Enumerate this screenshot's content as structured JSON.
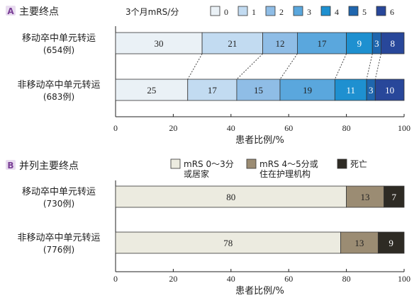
{
  "chart_data": [
    {
      "type": "bar",
      "stacked": true,
      "orientation": "horizontal",
      "panel_letter": "A",
      "title": "主要终点",
      "legend_title": "3个月mRS/分",
      "xlabel": "患者比例/%",
      "xlim": [
        0,
        100
      ],
      "xticks": [
        "0",
        "20",
        "40",
        "60",
        "80",
        "100"
      ],
      "categories": [
        {
          "line1": "移动卒中单元转运",
          "line2": "(654例)"
        },
        {
          "line1": "非移动卒中单元转运",
          "line2": "(683例)"
        }
      ],
      "series": [
        {
          "name": "0",
          "color": "#eaf1f6",
          "values": [
            30,
            25
          ]
        },
        {
          "name": "1",
          "color": "#c2dbf1",
          "values": [
            21,
            17
          ]
        },
        {
          "name": "2",
          "color": "#8fbde6",
          "values": [
            12,
            15
          ]
        },
        {
          "name": "3",
          "color": "#5aa7dd",
          "values": [
            17,
            19
          ]
        },
        {
          "name": "4",
          "color": "#1e90d0",
          "values": [
            9,
            11
          ]
        },
        {
          "name": "5",
          "color": "#1f66ae",
          "values": [
            3,
            3
          ]
        },
        {
          "name": "6",
          "color": "#28479a",
          "values": [
            8,
            10
          ]
        }
      ],
      "connectors": "dotted"
    },
    {
      "type": "bar",
      "stacked": true,
      "orientation": "horizontal",
      "panel_letter": "B",
      "title": "并列主要终点",
      "xlabel": "患者比例/%",
      "xlim": [
        0,
        100
      ],
      "xticks": [
        "0",
        "20",
        "40",
        "60",
        "80",
        "100"
      ],
      "categories": [
        {
          "line1": "移动卒中单元转运",
          "line2": "(730例)"
        },
        {
          "line1": "非移动卒中单元转运",
          "line2": "(776例)"
        }
      ],
      "series": [
        {
          "name": "mRS 0～3分\n或居家",
          "color": "#ecebe0",
          "values": [
            80,
            78
          ]
        },
        {
          "name": "mRS 4～5分或\n住在护理机构",
          "color": "#9b8c73",
          "values": [
            13,
            13
          ]
        },
        {
          "name": "死亡",
          "color": "#2e2b24",
          "values": [
            7,
            9
          ]
        }
      ]
    }
  ]
}
